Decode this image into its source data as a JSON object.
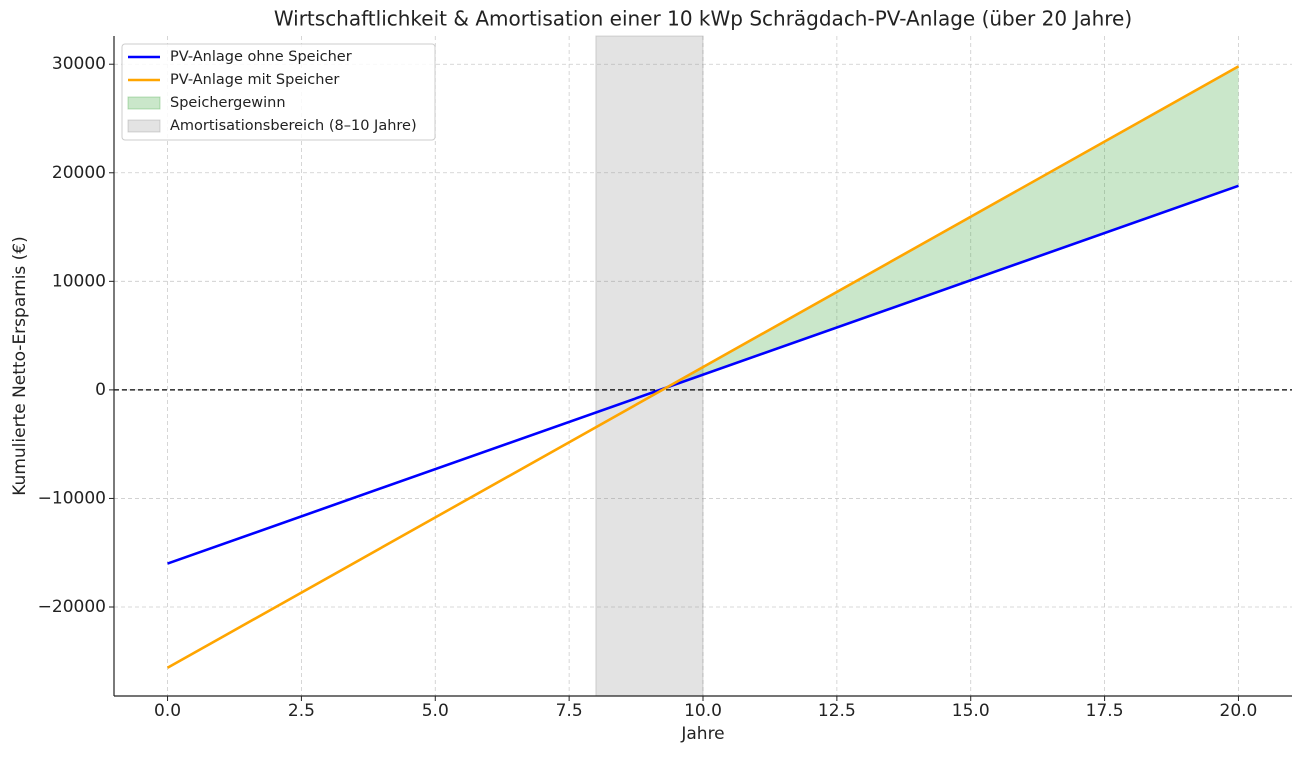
{
  "chart_data": {
    "type": "line",
    "title": "Wirtschaftlichkeit & Amortisation einer 10 kWp Schrägdach-PV-Anlage (über 20 Jahre)",
    "xlabel": "Jahre",
    "ylabel": "Kumulierte Netto-Ersparnis (€)",
    "x": [
      0,
      20
    ],
    "series": [
      {
        "name": "PV-Anlage ohne Speicher",
        "color": "#0000ff",
        "values": [
          -16000,
          18800
        ]
      },
      {
        "name": "PV-Anlage mit Speicher",
        "color": "#ffa500",
        "values": [
          -25600,
          29800
        ]
      }
    ],
    "fill": {
      "name": "Speichergewinn",
      "color": "#2ca02c"
    },
    "span": {
      "name": "Amortisationsbereich (8–10 Jahre)",
      "xrange": [
        8,
        10
      ],
      "color": "#808080"
    },
    "hline": 0,
    "xlim": [
      -1,
      21
    ],
    "ylim": [
      -28200,
      32600
    ],
    "xticks": [
      {
        "value": 0,
        "label": "0.0"
      },
      {
        "value": 2.5,
        "label": "2.5"
      },
      {
        "value": 5,
        "label": "5.0"
      },
      {
        "value": 7.5,
        "label": "7.5"
      },
      {
        "value": 10,
        "label": "10.0"
      },
      {
        "value": 12.5,
        "label": "12.5"
      },
      {
        "value": 15,
        "label": "15.0"
      },
      {
        "value": 17.5,
        "label": "17.5"
      },
      {
        "value": 20,
        "label": "20.0"
      }
    ],
    "yticks": [
      {
        "value": -20000,
        "label": "−20000"
      },
      {
        "value": -10000,
        "label": "−10000"
      },
      0,
      10000,
      20000,
      30000
    ],
    "grid": true,
    "legend": "upper left"
  }
}
